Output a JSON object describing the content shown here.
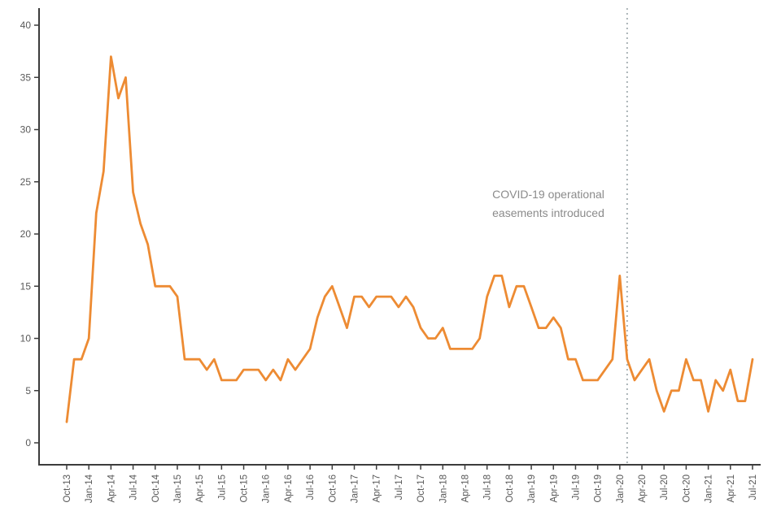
{
  "chart_data": {
    "type": "line",
    "title": "",
    "xlabel": "",
    "ylabel": "",
    "ylim": [
      0,
      40
    ],
    "yticks": [
      0,
      5,
      10,
      15,
      20,
      25,
      30,
      35,
      40
    ],
    "x_tick_every": 3,
    "grid": false,
    "legend": "none",
    "line_color": "#ED8B33",
    "axis_color": "#3c3c3c",
    "tick_label_color": "#595959",
    "categories": [
      "Oct-13",
      "Nov-13",
      "Dec-13",
      "Jan-14",
      "Feb-14",
      "Mar-14",
      "Apr-14",
      "May-14",
      "Jun-14",
      "Jul-14",
      "Aug-14",
      "Sep-14",
      "Oct-14",
      "Nov-14",
      "Dec-14",
      "Jan-15",
      "Feb-15",
      "Mar-15",
      "Apr-15",
      "May-15",
      "Jun-15",
      "Jul-15",
      "Aug-15",
      "Sep-15",
      "Oct-15",
      "Nov-15",
      "Dec-15",
      "Jan-16",
      "Feb-16",
      "Mar-16",
      "Apr-16",
      "May-16",
      "Jun-16",
      "Jul-16",
      "Aug-16",
      "Sep-16",
      "Oct-16",
      "Nov-16",
      "Dec-16",
      "Jan-17",
      "Feb-17",
      "Mar-17",
      "Apr-17",
      "May-17",
      "Jun-17",
      "Jul-17",
      "Aug-17",
      "Sep-17",
      "Oct-17",
      "Nov-17",
      "Dec-17",
      "Jan-18",
      "Feb-18",
      "Mar-18",
      "Apr-18",
      "May-18",
      "Jun-18",
      "Jul-18",
      "Aug-18",
      "Sep-18",
      "Oct-18",
      "Nov-18",
      "Dec-18",
      "Jan-19",
      "Feb-19",
      "Mar-19",
      "Apr-19",
      "May-19",
      "Jun-19",
      "Jul-19",
      "Aug-19",
      "Sep-19",
      "Oct-19",
      "Nov-19",
      "Dec-19",
      "Jan-20",
      "Feb-20",
      "Mar-20",
      "Apr-20",
      "May-20",
      "Jun-20",
      "Jul-20",
      "Aug-20",
      "Sep-20",
      "Oct-20",
      "Nov-20",
      "Dec-20",
      "Jan-21",
      "Feb-21",
      "Mar-21",
      "Apr-21",
      "May-21",
      "Jun-21",
      "Jul-21"
    ],
    "values": [
      2,
      8,
      8,
      10,
      22,
      26,
      37,
      33,
      35,
      24,
      21,
      19,
      15,
      15,
      15,
      14,
      8,
      8,
      8,
      7,
      8,
      6,
      6,
      6,
      7,
      7,
      7,
      6,
      7,
      6,
      8,
      7,
      8,
      9,
      12,
      14,
      15,
      13,
      11,
      14,
      14,
      13,
      14,
      14,
      14,
      13,
      14,
      13,
      11,
      10,
      10,
      11,
      9,
      9,
      9,
      9,
      10,
      14,
      16,
      16,
      13,
      15,
      15,
      13,
      11,
      11,
      12,
      11,
      8,
      8,
      6,
      6,
      6,
      7,
      8,
      16,
      8,
      6,
      7,
      8,
      5,
      3,
      5,
      5,
      8,
      6,
      6,
      3,
      6,
      5,
      7,
      4,
      4,
      8
    ],
    "vline": {
      "x_index": 76,
      "style": "dotted",
      "color": "#9AA5A9"
    },
    "annotation": {
      "lines": [
        "COVID-19 operational",
        "easements introduced"
      ],
      "color": "#8B8B8B"
    }
  }
}
